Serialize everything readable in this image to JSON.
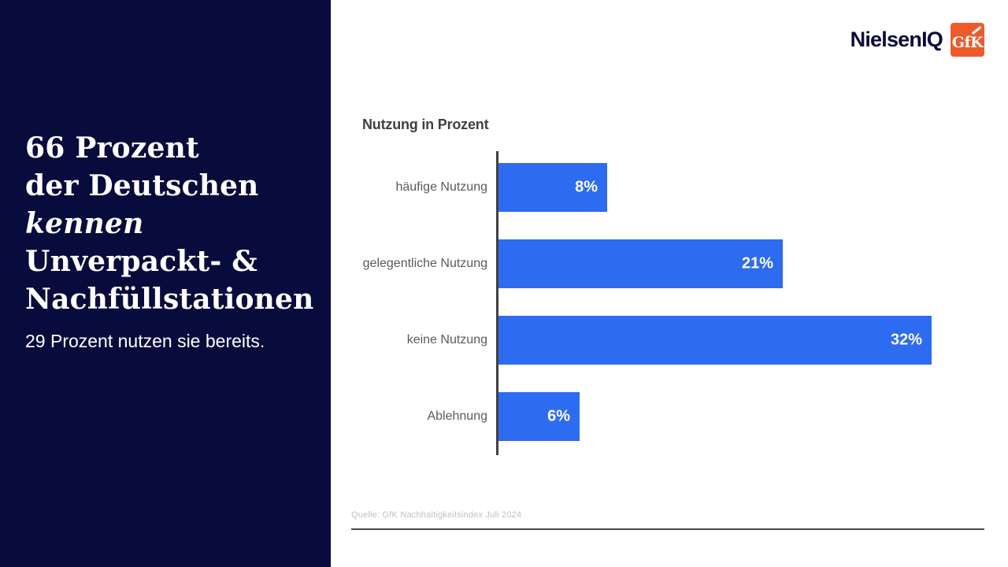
{
  "left_panel": {
    "headline_lines": [
      {
        "text": "66 Prozent",
        "italic": false
      },
      {
        "text": "der Deutschen",
        "italic": false
      },
      {
        "text": "kennen",
        "italic": true
      },
      {
        "text": "Unverpackt- &",
        "italic": false
      },
      {
        "text": "Nachfüllstationen",
        "italic": false
      }
    ],
    "subline": "29 Prozent nutzen sie bereits.",
    "background_color": "#080C3C",
    "text_color": "#FFFFFF"
  },
  "header": {
    "nielseniq_logo_text": "NielsenIQ",
    "gfk_logo_text": "GfK",
    "nielseniq_color": "#0A0A3C",
    "gfk_orange": "#EE5B2B"
  },
  "chart_data": {
    "type": "bar",
    "orientation": "horizontal",
    "title": "Nutzung in Prozent",
    "categories": [
      "häufige Nutzung",
      "gelegentliche Nutzung",
      "keine Nutzung",
      "Ablehnung"
    ],
    "values": [
      8,
      21,
      32,
      6
    ],
    "value_labels": [
      "8%",
      "21%",
      "32%",
      "6%"
    ],
    "xlim": [
      0,
      32
    ],
    "grid": false,
    "legend": false,
    "bar_color": "#2D6BF0",
    "axis_line_color": "#404040",
    "label_color": "#5A5A5A",
    "value_label_color": "#FFFFFF"
  },
  "footer": {
    "source": "Quelle: GfK Nachhaltigkeitsindex Juli 2024"
  }
}
